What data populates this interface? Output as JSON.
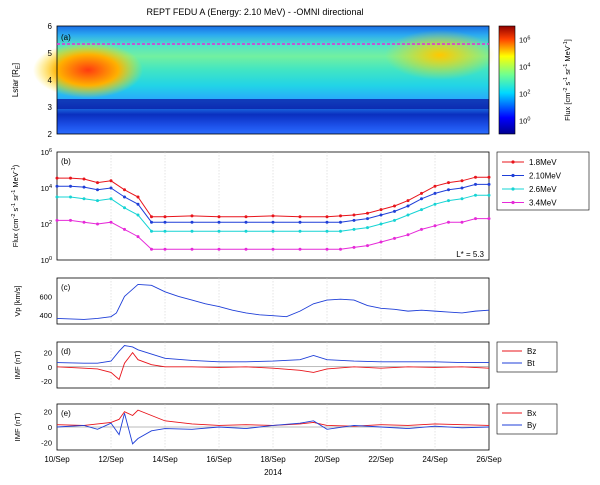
{
  "title": "REPT FEDU A (Energy:     2.10 MeV)  -  -OMNI directional",
  "colors": {
    "red": "#e8141b",
    "blue": "#1f3fd8",
    "cyan": "#16d4d4",
    "magenta": "#e62ad8",
    "grid": "#c8c8c8",
    "panel_line": "#2a4be0"
  },
  "chart_data": [
    {
      "panel": "(a)",
      "type": "heatmap",
      "ylabel": "Lstar [R",
      "ylabel_sub": "E",
      "ylabel_end": "]",
      "ylim": [
        2,
        6
      ],
      "yticks": [
        "2",
        "3",
        "4",
        "5",
        "6"
      ],
      "reference_line": {
        "L": 5.3,
        "style": "magenta dashed"
      },
      "colorbar": {
        "label": "Flux [cm",
        "label_rest": " s",
        "label_rest2": " sr",
        "label_rest3": " MeV",
        "label_end": "]",
        "exp_m2": "-2",
        "exp_m1": "-1",
        "ticks": [
          {
            "base": "10",
            "exp": "0"
          },
          {
            "base": "10",
            "exp": "2"
          },
          {
            "base": "10",
            "exp": "4"
          },
          {
            "base": "10",
            "exp": "6"
          }
        ],
        "range_log10": [
          -1,
          7
        ]
      }
    },
    {
      "panel": "(b)",
      "type": "line",
      "scale": "log",
      "ylabel": "Flux (cm",
      "ylabel_rest": " s",
      "ylabel_rest2": " sr",
      "ylabel_rest3": " MeV",
      "ylabel_end": ")",
      "exp_m2": "-2",
      "exp_m1": "-1",
      "yticks": [
        {
          "base": "10",
          "exp": "0"
        },
        {
          "base": "10",
          "exp": "2"
        },
        {
          "base": "10",
          "exp": "4"
        },
        {
          "base": "10",
          "exp": "6"
        }
      ],
      "ylim_log10": [
        0,
        6
      ],
      "annotation": "L* = 5.3",
      "x_days": [
        0,
        0.5,
        1,
        1.5,
        2,
        2.5,
        3,
        3.5,
        4,
        5,
        6,
        7,
        8,
        9,
        10,
        10.5,
        11,
        11.5,
        12,
        12.5,
        13,
        13.5,
        14,
        14.5,
        15,
        15.5,
        16
      ],
      "series": [
        {
          "name": "1.8MeV",
          "color": "#e8141b",
          "values_log10": [
            4.55,
            4.55,
            4.5,
            4.3,
            4.4,
            3.9,
            3.5,
            2.4,
            2.4,
            2.45,
            2.4,
            2.4,
            2.45,
            2.4,
            2.4,
            2.45,
            2.5,
            2.6,
            2.8,
            3.0,
            3.3,
            3.7,
            4.1,
            4.3,
            4.4,
            4.6,
            4.6
          ]
        },
        {
          "name": "2.10MeV",
          "color": "#1f3fd8",
          "values_log10": [
            4.1,
            4.1,
            4.05,
            3.9,
            4.0,
            3.5,
            3.1,
            2.1,
            2.1,
            2.1,
            2.1,
            2.1,
            2.1,
            2.1,
            2.1,
            2.1,
            2.2,
            2.3,
            2.5,
            2.7,
            3.0,
            3.4,
            3.7,
            3.9,
            4.0,
            4.2,
            4.2
          ]
        },
        {
          "name": "2.6MeV",
          "color": "#16d4d4",
          "values_log10": [
            3.5,
            3.5,
            3.4,
            3.3,
            3.4,
            2.9,
            2.5,
            1.6,
            1.6,
            1.6,
            1.6,
            1.6,
            1.6,
            1.6,
            1.6,
            1.6,
            1.7,
            1.8,
            2.0,
            2.2,
            2.5,
            2.8,
            3.1,
            3.3,
            3.4,
            3.6,
            3.6
          ]
        },
        {
          "name": "3.4MeV",
          "color": "#e62ad8",
          "values_log10": [
            2.2,
            2.2,
            2.1,
            2.0,
            2.1,
            1.7,
            1.3,
            0.6,
            0.6,
            0.6,
            0.6,
            0.6,
            0.6,
            0.6,
            0.6,
            0.6,
            0.7,
            0.8,
            1.0,
            1.2,
            1.4,
            1.7,
            1.9,
            2.1,
            2.1,
            2.3,
            2.3
          ]
        }
      ]
    },
    {
      "panel": "(c)",
      "type": "line",
      "ylabel": "Vp [km/s]",
      "yticks": [
        "400",
        "600"
      ],
      "ylim": [
        300,
        800
      ],
      "x_days": [
        0,
        0.5,
        1,
        1.5,
        2,
        2.2,
        2.5,
        3,
        3.5,
        4,
        4.5,
        5,
        5.5,
        6,
        6.5,
        7,
        7.5,
        8,
        8.5,
        9,
        9.5,
        10,
        10.5,
        11,
        11.5,
        12,
        12.5,
        13,
        13.5,
        14,
        14.5,
        15,
        15.5,
        16
      ],
      "series": [
        {
          "name": "",
          "color": "#1f3fd8",
          "values": [
            360,
            355,
            350,
            360,
            380,
            420,
            600,
            730,
            720,
            650,
            600,
            560,
            520,
            490,
            450,
            420,
            400,
            390,
            380,
            440,
            520,
            560,
            570,
            560,
            500,
            470,
            460,
            440,
            450,
            440,
            430,
            420,
            440,
            450
          ]
        }
      ]
    },
    {
      "panel": "(d)",
      "type": "line",
      "ylabel": "IMF (nT)",
      "yticks": [
        "-20",
        "0",
        "20"
      ],
      "ylim": [
        -30,
        35
      ],
      "x_days": [
        0,
        1,
        1.5,
        2,
        2.3,
        2.5,
        2.8,
        3,
        3.5,
        4,
        5,
        6,
        7,
        8,
        9,
        9.5,
        10,
        11,
        12,
        13,
        14,
        15,
        16
      ],
      "series": [
        {
          "name": "Bz",
          "color": "#e8141b",
          "values": [
            0,
            -2,
            -3,
            -8,
            -18,
            5,
            20,
            10,
            3,
            0,
            0,
            -1,
            0,
            -2,
            -5,
            -8,
            -3,
            0,
            -2,
            0,
            -1,
            0,
            -2
          ]
        },
        {
          "name": "Bt",
          "color": "#1f3fd8",
          "values": [
            6,
            5,
            5,
            8,
            22,
            30,
            28,
            24,
            18,
            12,
            9,
            7,
            7,
            8,
            10,
            16,
            10,
            8,
            7,
            7,
            7,
            6,
            6
          ]
        }
      ]
    },
    {
      "panel": "(e)",
      "type": "line",
      "ylabel": "IMF (nT)",
      "yticks": [
        "-20",
        "0",
        "20"
      ],
      "ylim": [
        -30,
        30
      ],
      "x_days": [
        0,
        1,
        1.5,
        2,
        2.3,
        2.5,
        2.8,
        3,
        3.5,
        4,
        5,
        6,
        7,
        8,
        9,
        9.5,
        10,
        11,
        12,
        13,
        14,
        15,
        16
      ],
      "series": [
        {
          "name": "Bx",
          "color": "#e8141b",
          "values": [
            3,
            2,
            4,
            6,
            10,
            20,
            15,
            22,
            15,
            8,
            4,
            2,
            3,
            2,
            4,
            6,
            2,
            1,
            3,
            2,
            4,
            3,
            2
          ]
        },
        {
          "name": "By",
          "color": "#1f3fd8",
          "values": [
            0,
            2,
            -3,
            5,
            -10,
            18,
            -22,
            -15,
            -5,
            -2,
            -3,
            0,
            -2,
            2,
            5,
            8,
            -3,
            2,
            0,
            -2,
            1,
            -1,
            0
          ]
        }
      ]
    }
  ],
  "x_axis": {
    "tick_labels": [
      "10/Sep",
      "12/Sep",
      "14/Sep",
      "16/Sep",
      "18/Sep",
      "20/Sep",
      "22/Sep",
      "24/Sep",
      "26/Sep"
    ],
    "tick_days": [
      0,
      2,
      4,
      6,
      8,
      10,
      12,
      14,
      16
    ],
    "year": "2014"
  }
}
